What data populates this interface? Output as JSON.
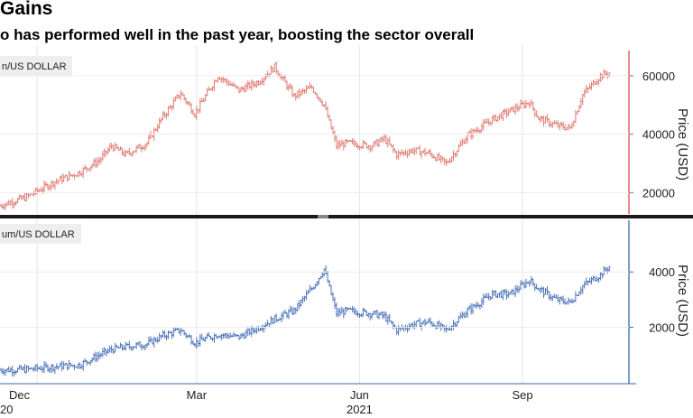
{
  "title": "Gains",
  "subtitle": "o has performed well in the past year, boosting the sector overall",
  "colors": {
    "btc": "#e07a72",
    "eth": "#4a72b8",
    "axis_btc": "#d9534f",
    "axis_eth": "#3a66b0",
    "divider": "#1a1a1a"
  },
  "x_ticks": [
    {
      "label": "Dec",
      "sub": "20"
    },
    {
      "label": "Mar",
      "sub": ""
    },
    {
      "label": "Jun",
      "sub": "2021"
    },
    {
      "label": "Sep",
      "sub": ""
    }
  ],
  "chart_data": [
    {
      "type": "candlestick",
      "legend": "n/US DOLLAR",
      "ylabel": "Price (USD)",
      "ylim": [
        13000,
        68000
      ],
      "y_ticks": [
        "60000",
        "40000",
        "20000"
      ],
      "y_tick_values": [
        60000,
        40000,
        20000
      ],
      "x_range": [
        "2020-11-10",
        "2021-10-25"
      ],
      "series": [
        {
          "x": [
            "2020-11-10",
            "2020-11-25",
            "2020-12-10",
            "2020-12-25",
            "2021-01-05",
            "2021-01-12",
            "2021-01-20",
            "2021-02-01",
            "2021-02-10",
            "2021-02-20",
            "2021-02-28",
            "2021-03-13",
            "2021-03-25",
            "2021-04-05",
            "2021-04-14",
            "2021-04-25",
            "2021-05-05",
            "2021-05-12",
            "2021-05-19",
            "2021-05-25",
            "2021-06-08",
            "2021-06-15",
            "2021-06-22",
            "2021-07-01",
            "2021-07-10",
            "2021-07-20",
            "2021-08-01",
            "2021-08-15",
            "2021-08-25",
            "2021-09-05",
            "2021-09-10",
            "2021-09-20",
            "2021-09-28",
            "2021-10-05",
            "2021-10-15",
            "2021-10-20"
          ],
          "values": [
            15500,
            18500,
            23500,
            27000,
            31000,
            36000,
            33000,
            37000,
            46000,
            54000,
            47000,
            60000,
            55000,
            58000,
            63000,
            53000,
            56000,
            50000,
            36000,
            37000,
            36000,
            38500,
            33000,
            34500,
            33500,
            30000,
            39500,
            45000,
            48000,
            51000,
            45500,
            43000,
            42000,
            53500,
            60000,
            61000
          ]
        }
      ]
    },
    {
      "type": "candlestick",
      "legend": "um/US DOLLAR",
      "ylabel": "Price (USD)",
      "ylim": [
        0,
        5800
      ],
      "y_ticks": [
        "4000",
        "2000"
      ],
      "y_tick_values": [
        4000,
        2000
      ],
      "x_range": [
        "2020-11-10",
        "2021-10-25"
      ],
      "series": [
        {
          "x": [
            "2020-11-10",
            "2020-11-25",
            "2020-12-10",
            "2020-12-25",
            "2021-01-05",
            "2021-01-12",
            "2021-01-20",
            "2021-02-01",
            "2021-02-10",
            "2021-02-20",
            "2021-02-28",
            "2021-03-13",
            "2021-03-25",
            "2021-04-05",
            "2021-04-14",
            "2021-04-25",
            "2021-05-05",
            "2021-05-12",
            "2021-05-19",
            "2021-05-25",
            "2021-06-08",
            "2021-06-15",
            "2021-06-22",
            "2021-07-01",
            "2021-07-10",
            "2021-07-20",
            "2021-08-01",
            "2021-08-15",
            "2021-08-25",
            "2021-09-05",
            "2021-09-10",
            "2021-09-20",
            "2021-09-28",
            "2021-10-05",
            "2021-10-15",
            "2021-10-20"
          ],
          "values": [
            460,
            480,
            580,
            650,
            1000,
            1200,
            1300,
            1400,
            1700,
            1900,
            1450,
            1750,
            1650,
            2000,
            2300,
            2600,
            3400,
            4100,
            2500,
            2600,
            2500,
            2400,
            1900,
            2100,
            2200,
            1900,
            2600,
            3200,
            3200,
            3700,
            3400,
            3000,
            2900,
            3500,
            3900,
            4200
          ]
        }
      ]
    }
  ]
}
